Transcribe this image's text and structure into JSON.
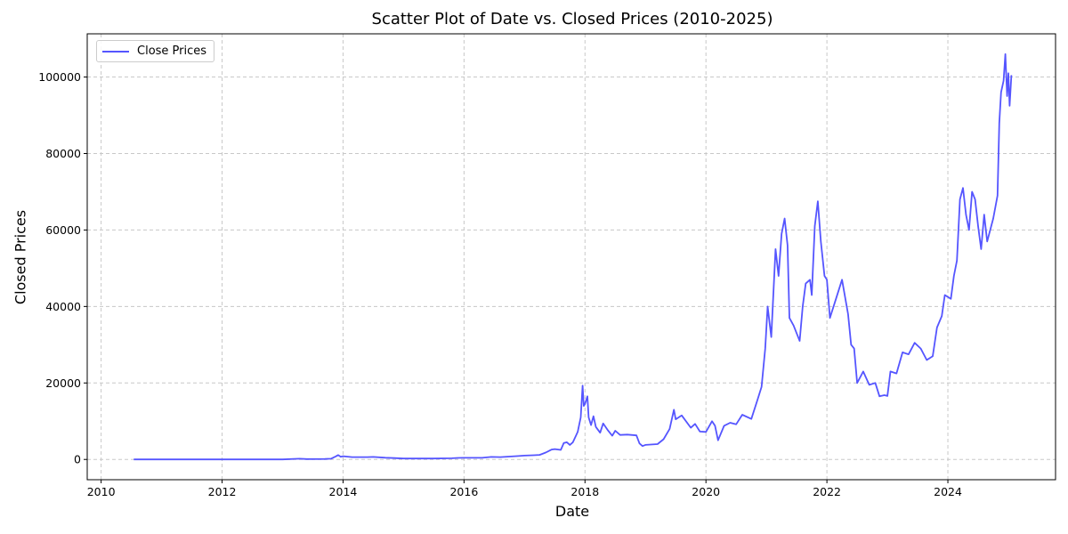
{
  "chart_data": {
    "type": "line",
    "title": "Scatter Plot of Date vs. Closed Prices (2010-2025)",
    "xlabel": "Date",
    "ylabel": "Closed Prices",
    "xlim": [
      2009.77,
      2025.78
    ],
    "ylim": [
      -5300,
      111300
    ],
    "x_ticks": [
      2010,
      2012,
      2014,
      2016,
      2018,
      2020,
      2022,
      2024
    ],
    "y_ticks": [
      0,
      20000,
      40000,
      60000,
      80000,
      100000
    ],
    "grid": true,
    "grid_style": "dashed",
    "legend_position": "top-left",
    "colors": {
      "series": "#5555ff",
      "grid": "#c8c8c8"
    },
    "series": [
      {
        "name": "Close Prices",
        "points": [
          [
            2010.54,
            0.1
          ],
          [
            2011.0,
            0.3
          ],
          [
            2011.45,
            15
          ],
          [
            2011.9,
            3
          ],
          [
            2012.5,
            7
          ],
          [
            2013.0,
            13
          ],
          [
            2013.28,
            200
          ],
          [
            2013.4,
            110
          ],
          [
            2013.7,
            130
          ],
          [
            2013.8,
            200
          ],
          [
            2013.88,
            800
          ],
          [
            2013.92,
            1150
          ],
          [
            2013.96,
            700
          ],
          [
            2014.0,
            850
          ],
          [
            2014.15,
            600
          ],
          [
            2014.4,
            620
          ],
          [
            2014.5,
            650
          ],
          [
            2014.7,
            450
          ],
          [
            2014.85,
            350
          ],
          [
            2015.0,
            250
          ],
          [
            2015.5,
            250
          ],
          [
            2015.8,
            300
          ],
          [
            2015.9,
            400
          ],
          [
            2016.0,
            430
          ],
          [
            2016.3,
            420
          ],
          [
            2016.45,
            650
          ],
          [
            2016.6,
            600
          ],
          [
            2016.9,
            900
          ],
          [
            2017.0,
            1000
          ],
          [
            2017.15,
            1100
          ],
          [
            2017.25,
            1200
          ],
          [
            2017.35,
            1800
          ],
          [
            2017.45,
            2600
          ],
          [
            2017.5,
            2700
          ],
          [
            2017.6,
            2500
          ],
          [
            2017.65,
            4300
          ],
          [
            2017.7,
            4500
          ],
          [
            2017.75,
            3800
          ],
          [
            2017.8,
            4500
          ],
          [
            2017.85,
            6200
          ],
          [
            2017.88,
            7200
          ],
          [
            2017.93,
            11000
          ],
          [
            2017.96,
            19300
          ],
          [
            2017.98,
            14000
          ],
          [
            2018.0,
            14500
          ],
          [
            2018.04,
            16500
          ],
          [
            2018.06,
            11000
          ],
          [
            2018.1,
            9000
          ],
          [
            2018.14,
            11300
          ],
          [
            2018.18,
            8500
          ],
          [
            2018.25,
            7000
          ],
          [
            2018.3,
            9400
          ],
          [
            2018.38,
            7600
          ],
          [
            2018.45,
            6200
          ],
          [
            2018.5,
            7500
          ],
          [
            2018.58,
            6400
          ],
          [
            2018.7,
            6500
          ],
          [
            2018.85,
            6300
          ],
          [
            2018.9,
            4200
          ],
          [
            2018.95,
            3500
          ],
          [
            2019.0,
            3800
          ],
          [
            2019.2,
            4000
          ],
          [
            2019.3,
            5300
          ],
          [
            2019.4,
            8000
          ],
          [
            2019.47,
            13000
          ],
          [
            2019.5,
            10500
          ],
          [
            2019.6,
            11500
          ],
          [
            2019.75,
            8300
          ],
          [
            2019.82,
            9300
          ],
          [
            2019.9,
            7300
          ],
          [
            2020.0,
            7200
          ],
          [
            2020.1,
            10000
          ],
          [
            2020.15,
            8800
          ],
          [
            2020.2,
            5000
          ],
          [
            2020.3,
            8800
          ],
          [
            2020.4,
            9600
          ],
          [
            2020.5,
            9200
          ],
          [
            2020.6,
            11700
          ],
          [
            2020.75,
            10600
          ],
          [
            2020.85,
            15500
          ],
          [
            2020.92,
            19000
          ],
          [
            2020.98,
            29000
          ],
          [
            2021.02,
            40000
          ],
          [
            2021.08,
            32000
          ],
          [
            2021.15,
            55000
          ],
          [
            2021.2,
            48000
          ],
          [
            2021.25,
            59000
          ],
          [
            2021.3,
            63000
          ],
          [
            2021.35,
            56000
          ],
          [
            2021.38,
            37000
          ],
          [
            2021.45,
            35000
          ],
          [
            2021.5,
            33000
          ],
          [
            2021.55,
            31000
          ],
          [
            2021.6,
            40000
          ],
          [
            2021.65,
            46000
          ],
          [
            2021.72,
            47000
          ],
          [
            2021.75,
            43000
          ],
          [
            2021.8,
            61000
          ],
          [
            2021.85,
            67500
          ],
          [
            2021.9,
            57000
          ],
          [
            2021.96,
            48000
          ],
          [
            2022.0,
            47000
          ],
          [
            2022.05,
            37000
          ],
          [
            2022.15,
            42000
          ],
          [
            2022.25,
            47000
          ],
          [
            2022.35,
            38000
          ],
          [
            2022.4,
            30000
          ],
          [
            2022.45,
            29000
          ],
          [
            2022.5,
            20000
          ],
          [
            2022.6,
            23000
          ],
          [
            2022.7,
            19500
          ],
          [
            2022.8,
            20000
          ],
          [
            2022.87,
            16500
          ],
          [
            2022.95,
            16800
          ],
          [
            2023.0,
            16600
          ],
          [
            2023.05,
            23000
          ],
          [
            2023.15,
            22500
          ],
          [
            2023.25,
            28000
          ],
          [
            2023.35,
            27500
          ],
          [
            2023.45,
            30500
          ],
          [
            2023.55,
            29000
          ],
          [
            2023.65,
            26000
          ],
          [
            2023.75,
            27000
          ],
          [
            2023.82,
            34500
          ],
          [
            2023.9,
            37500
          ],
          [
            2023.95,
            43000
          ],
          [
            2024.05,
            42000
          ],
          [
            2024.1,
            48000
          ],
          [
            2024.15,
            52000
          ],
          [
            2024.2,
            68000
          ],
          [
            2024.25,
            71000
          ],
          [
            2024.3,
            64000
          ],
          [
            2024.35,
            60000
          ],
          [
            2024.4,
            70000
          ],
          [
            2024.45,
            68000
          ],
          [
            2024.5,
            61000
          ],
          [
            2024.55,
            55000
          ],
          [
            2024.6,
            64000
          ],
          [
            2024.65,
            57000
          ],
          [
            2024.75,
            63000
          ],
          [
            2024.82,
            69000
          ],
          [
            2024.85,
            88000
          ],
          [
            2024.88,
            96000
          ],
          [
            2024.92,
            99000
          ],
          [
            2024.95,
            106000
          ],
          [
            2024.98,
            95000
          ],
          [
            2025.0,
            101000
          ],
          [
            2025.02,
            92500
          ],
          [
            2025.05,
            100500
          ]
        ]
      }
    ]
  }
}
